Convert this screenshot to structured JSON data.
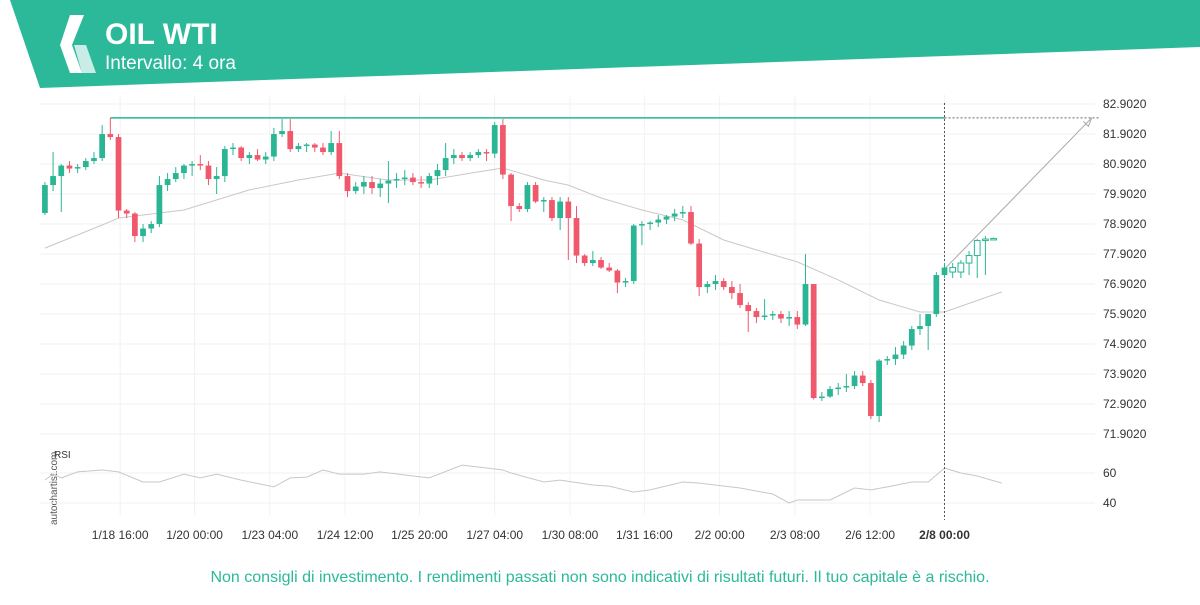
{
  "header": {
    "title": "OIL WTI",
    "subtitle": "Intervallo: 4 ora"
  },
  "footer": "Non consigli di investimento. I rendimenti passati non sono indicativi di risultati futuri. Il tuo capitale è a rischio.",
  "watermark": "autochartist.com",
  "chart_data": {
    "type": "candlestick",
    "grid": true,
    "up_color": "#2ab594",
    "down_color": "#f0586c",
    "xlim": [
      -0.6,
      128.4
    ],
    "ylim": [
      71.535,
      83.202
    ],
    "yticks": [
      {
        "value": 71.902,
        "label": "71.9020"
      },
      {
        "value": 72.902,
        "label": "72.9020"
      },
      {
        "value": 73.902,
        "label": "73.9020"
      },
      {
        "value": 74.902,
        "label": "74.9020"
      },
      {
        "value": 75.902,
        "label": "75.9020"
      },
      {
        "value": 76.902,
        "label": "76.9020"
      },
      {
        "value": 77.902,
        "label": "77.9020"
      },
      {
        "value": 78.902,
        "label": "78.9020"
      },
      {
        "value": 79.902,
        "label": "79.9020"
      },
      {
        "value": 80.902,
        "label": "80.9020"
      },
      {
        "value": 81.902,
        "label": "81.9020"
      },
      {
        "value": 82.902,
        "label": "82.9020"
      }
    ],
    "xticks": [
      {
        "value": 9.2,
        "label": "1/18 16:00"
      },
      {
        "value": 18.3,
        "label": "1/20 00:00"
      },
      {
        "value": 27.5,
        "label": "1/23 04:00"
      },
      {
        "value": 36.7,
        "label": "1/24 12:00"
      },
      {
        "value": 45.8,
        "label": "1/25 20:00"
      },
      {
        "value": 55,
        "label": "1/27 04:00"
      },
      {
        "value": 64.2,
        "label": "1/30 08:00"
      },
      {
        "value": 73.3,
        "label": "1/31 16:00"
      },
      {
        "value": 82.5,
        "label": "2/2 00:00"
      },
      {
        "value": 91.7,
        "label": "2/3 08:00"
      },
      {
        "value": 100.9,
        "label": "2/6 12:00"
      },
      {
        "value": 110,
        "label": "2/8 00:00"
      }
    ],
    "open": [
      79.27,
      80.2,
      80.5,
      80.85,
      80.75,
      80.8,
      81.0,
      81.1,
      81.9,
      81.8,
      79.35,
      79.25,
      78.5,
      78.75,
      78.9,
      80.2,
      80.4,
      80.6,
      80.85,
      80.9,
      80.85,
      80.4,
      80.5,
      81.4,
      81.45,
      81.1,
      81.2,
      81.05,
      81.15,
      81.9,
      82.0,
      81.4,
      81.5,
      81.55,
      81.45,
      81.3,
      81.6,
      80.5,
      80.0,
      80.15,
      80.3,
      80.1,
      80.25,
      80.35,
      80.4,
      80.45,
      80.3,
      80.25,
      80.5,
      80.7,
      81.1,
      81.2,
      81.1,
      81.2,
      81.3,
      81.25,
      82.2,
      80.55,
      79.5,
      79.4,
      80.2,
      79.65,
      79.7,
      79.1,
      79.65,
      79.1,
      77.85,
      77.6,
      77.7,
      77.45,
      77.35,
      76.95,
      77.0,
      78.85,
      78.9,
      78.95,
      79.05,
      79.15,
      79.25,
      79.3,
      78.25,
      76.8,
      76.9,
      77.0,
      76.8,
      76.6,
      76.2,
      76.0,
      75.8,
      75.85,
      75.9,
      75.75,
      75.8,
      75.55,
      76.9,
      73.1,
      73.15,
      73.4,
      73.45,
      73.5,
      73.85,
      73.6,
      72.5,
      74.35,
      74.4,
      74.55,
      74.85,
      75.4,
      75.5,
      75.9,
      77.2,
      77.45,
      77.3,
      77.6,
      77.85,
      78.35,
      78.4
    ],
    "high": [
      80.3,
      81.3,
      80.9,
      81.0,
      80.9,
      81.1,
      81.3,
      82.2,
      82.44,
      81.9,
      79.4,
      79.3,
      78.9,
      79.0,
      80.5,
      80.6,
      80.8,
      80.9,
      81.0,
      81.2,
      81.0,
      80.8,
      81.5,
      81.6,
      81.5,
      81.3,
      81.4,
      81.3,
      82.1,
      82.4,
      82.4,
      81.6,
      81.6,
      81.6,
      81.6,
      82.0,
      82.0,
      80.6,
      80.3,
      80.5,
      80.5,
      80.4,
      81.0,
      80.6,
      80.7,
      80.6,
      80.5,
      80.6,
      80.9,
      81.6,
      81.4,
      81.3,
      81.3,
      81.4,
      81.4,
      82.3,
      82.4,
      80.6,
      79.6,
      80.3,
      80.3,
      79.8,
      79.8,
      79.8,
      79.8,
      79.5,
      77.9,
      78.0,
      77.8,
      77.6,
      77.4,
      77.1,
      78.9,
      79.0,
      79.0,
      79.2,
      79.2,
      79.4,
      79.5,
      79.5,
      78.4,
      77.0,
      77.2,
      77.1,
      77.0,
      76.9,
      76.3,
      76.1,
      76.4,
      76.0,
      76.0,
      76.0,
      76.0,
      77.9,
      76.9,
      73.3,
      73.5,
      73.6,
      73.9,
      74.0,
      74.0,
      73.7,
      74.4,
      74.5,
      74.8,
      75.0,
      75.5,
      75.9,
      75.9,
      77.3,
      77.6,
      77.6,
      77.7,
      78.0,
      78.4,
      78.5,
      78.45
    ],
    "low": [
      79.2,
      80.0,
      79.3,
      80.6,
      80.6,
      80.7,
      80.9,
      81.0,
      81.7,
      79.1,
      79.1,
      78.3,
      78.3,
      78.6,
      78.8,
      80.0,
      80.3,
      80.4,
      80.5,
      80.7,
      80.2,
      79.9,
      80.3,
      81.2,
      81.0,
      80.9,
      81.0,
      80.9,
      81.0,
      81.8,
      81.3,
      81.3,
      81.3,
      81.3,
      81.2,
      81.2,
      80.4,
      79.8,
      79.9,
      79.9,
      79.9,
      79.8,
      79.6,
      80.1,
      80.2,
      80.2,
      80.1,
      80.1,
      80.2,
      80.5,
      80.9,
      81.0,
      81.0,
      81.1,
      81.0,
      81.1,
      80.4,
      79.0,
      79.3,
      79.3,
      79.6,
      79.3,
      79.0,
      78.7,
      77.7,
      77.6,
      77.5,
      77.5,
      77.4,
      77.3,
      76.6,
      76.8,
      76.9,
      78.2,
      78.7,
      78.8,
      78.9,
      79.0,
      79.1,
      78.2,
      76.5,
      76.6,
      76.7,
      76.7,
      76.4,
      76.1,
      75.3,
      75.6,
      75.7,
      75.7,
      75.6,
      75.5,
      75.4,
      75.5,
      73.05,
      73.0,
      73.1,
      73.2,
      73.3,
      73.4,
      73.5,
      72.4,
      72.3,
      74.2,
      74.2,
      74.4,
      74.7,
      75.2,
      74.7,
      75.8,
      77.1,
      77.1,
      77.1,
      77.2,
      77.1,
      77.2,
      78.4
    ],
    "close": [
      80.2,
      80.5,
      80.85,
      80.75,
      80.8,
      81.0,
      81.1,
      81.9,
      81.8,
      79.35,
      79.25,
      78.5,
      78.75,
      78.9,
      80.2,
      80.4,
      80.6,
      80.85,
      80.9,
      80.85,
      80.4,
      80.5,
      81.4,
      81.45,
      81.1,
      81.2,
      81.05,
      81.15,
      81.9,
      82.0,
      81.4,
      81.5,
      81.55,
      81.45,
      81.3,
      81.6,
      80.5,
      80.0,
      80.15,
      80.3,
      80.1,
      80.25,
      80.35,
      80.4,
      80.45,
      80.3,
      80.25,
      80.5,
      80.7,
      81.1,
      81.2,
      81.1,
      81.2,
      81.3,
      81.25,
      82.2,
      80.55,
      79.5,
      79.4,
      80.2,
      79.65,
      79.7,
      79.1,
      79.65,
      79.1,
      77.85,
      77.6,
      77.7,
      77.45,
      77.35,
      76.95,
      77.0,
      78.85,
      78.9,
      78.95,
      79.05,
      79.15,
      79.25,
      79.3,
      78.25,
      76.8,
      76.9,
      77.0,
      76.8,
      76.6,
      76.2,
      76.0,
      75.8,
      75.85,
      75.9,
      75.75,
      75.8,
      75.55,
      76.9,
      73.1,
      73.15,
      73.4,
      73.45,
      73.5,
      73.85,
      73.6,
      72.5,
      74.35,
      74.4,
      74.55,
      74.85,
      75.4,
      75.5,
      75.9,
      77.2,
      77.45,
      77.3,
      77.6,
      77.85,
      78.35,
      78.4,
      78.42
    ],
    "ma": {
      "color": "#c8c8c8",
      "x": [
        0,
        7,
        9,
        17,
        25,
        31,
        36,
        42,
        47,
        53,
        56,
        61,
        64,
        68,
        73,
        78,
        83,
        87,
        92,
        97,
        102,
        107,
        110,
        117
      ],
      "values": [
        78.1,
        78.87,
        79.1,
        79.37,
        80.04,
        80.37,
        80.6,
        80.37,
        80.37,
        80.64,
        80.77,
        80.37,
        80.2,
        79.77,
        79.37,
        79.04,
        78.37,
        78.04,
        77.64,
        77.04,
        76.37,
        75.97,
        75.97,
        76.64
      ]
    },
    "resistance": {
      "color": "#2ab594",
      "value": 82.44,
      "start": 8,
      "end": 110
    },
    "vline": 110,
    "arrow": {
      "x": [
        110,
        128
      ],
      "y": [
        77.4,
        82.44
      ]
    },
    "rsi": {
      "name": "RSI",
      "color": "#c8c8c8",
      "ylim": [
        32,
        72
      ],
      "yticks": [
        60,
        40
      ],
      "x": [
        0,
        1,
        2,
        4,
        7,
        9,
        12,
        14,
        17,
        19,
        21,
        24,
        28,
        30,
        32,
        34,
        36,
        39,
        41,
        45,
        47,
        51,
        53,
        56,
        57,
        61,
        63,
        67,
        69,
        72,
        74,
        78,
        80,
        85,
        89,
        91,
        92,
        96,
        99,
        101,
        103,
        106,
        108,
        110,
        112,
        114,
        117
      ],
      "values": [
        55.3,
        59.3,
        56.7,
        60.7,
        62,
        60.7,
        54,
        54,
        59.3,
        56.7,
        59.3,
        55.3,
        50.7,
        56.7,
        57.3,
        62,
        59.3,
        59.3,
        60.7,
        58,
        56.7,
        65.3,
        64,
        62,
        60,
        54,
        55.3,
        52,
        51.3,
        47.3,
        48.7,
        54,
        53.3,
        50,
        46,
        40,
        42,
        42,
        50,
        48.7,
        50.7,
        54,
        54,
        63.3,
        60,
        58,
        53.3
      ]
    }
  }
}
